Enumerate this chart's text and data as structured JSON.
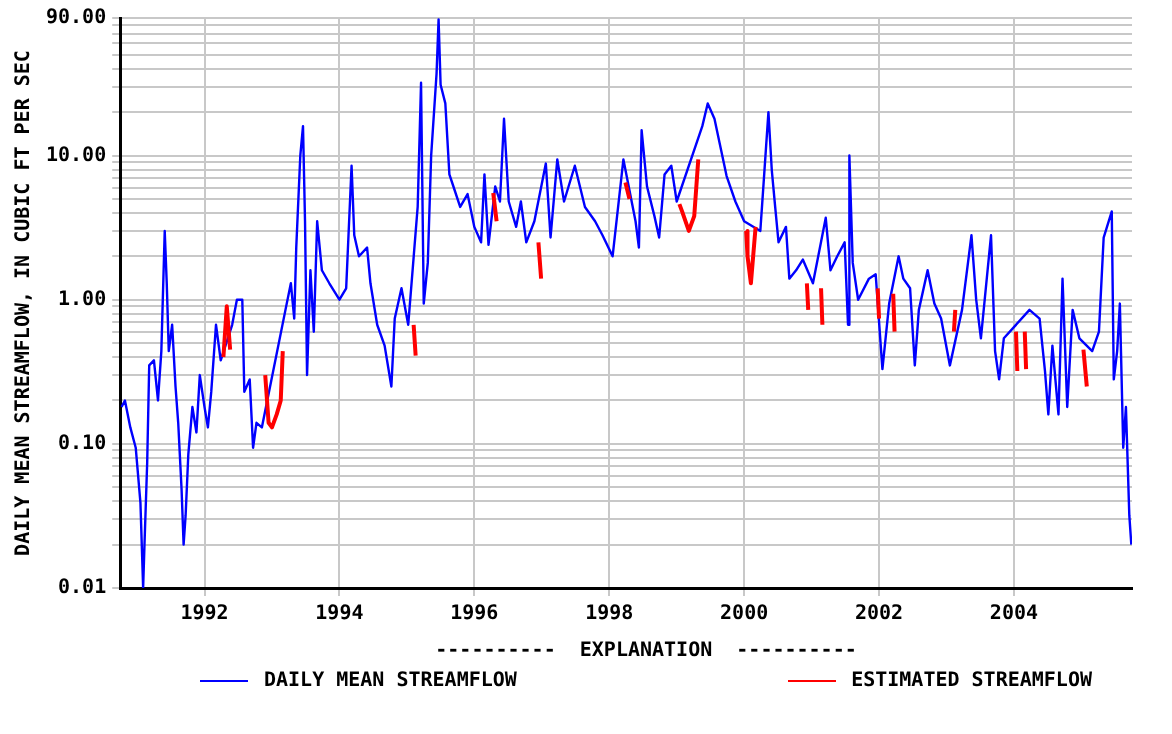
{
  "chart_data": {
    "type": "line",
    "ylabel": "DAILY MEAN STREAMFLOW, IN CUBIC FT PER SEC",
    "legend_title": "----------  EXPLANATION  ----------",
    "legend": "bottom",
    "grid": true,
    "log": "y",
    "line_style": "solid",
    "xlim": [
      1990.75,
      2005.75
    ],
    "xticks": [
      1992,
      1994,
      1996,
      1998,
      2000,
      2002,
      2004
    ],
    "ylim": [
      0.01,
      90
    ],
    "yticks": [
      {
        "value": 0.01,
        "label": "0.01"
      },
      {
        "value": 0.02,
        "label": null
      },
      {
        "value": 0.03,
        "label": null
      },
      {
        "value": 0.04,
        "label": null
      },
      {
        "value": 0.05,
        "label": null
      },
      {
        "value": 0.06,
        "label": null
      },
      {
        "value": 0.07,
        "label": null
      },
      {
        "value": 0.08,
        "label": null
      },
      {
        "value": 0.09,
        "label": null
      },
      {
        "value": 0.1,
        "label": "0.10"
      },
      {
        "value": 0.2,
        "label": null
      },
      {
        "value": 0.3,
        "label": null
      },
      {
        "value": 0.4,
        "label": null
      },
      {
        "value": 0.5,
        "label": null
      },
      {
        "value": 0.6,
        "label": null
      },
      {
        "value": 0.7,
        "label": null
      },
      {
        "value": 0.8,
        "label": null
      },
      {
        "value": 0.9,
        "label": null
      },
      {
        "value": 1,
        "label": "1.00"
      },
      {
        "value": 2,
        "label": null
      },
      {
        "value": 3,
        "label": null
      },
      {
        "value": 4,
        "label": null
      },
      {
        "value": 5,
        "label": null
      },
      {
        "value": 6,
        "label": null
      },
      {
        "value": 7,
        "label": null
      },
      {
        "value": 8,
        "label": null
      },
      {
        "value": 9,
        "label": null
      },
      {
        "value": 10,
        "label": "10.00"
      },
      {
        "value": 20,
        "label": null
      },
      {
        "value": 30,
        "label": null
      },
      {
        "value": 40,
        "label": null
      },
      {
        "value": 50,
        "label": null
      },
      {
        "value": 60,
        "label": null
      },
      {
        "value": 70,
        "label": null
      },
      {
        "value": 80,
        "label": null
      },
      {
        "value": 90,
        "label": "90.00"
      }
    ],
    "series": [
      {
        "name": "DAILY MEAN STREAMFLOW",
        "color": "#0000ff",
        "x": [
          1990.77,
          1990.82,
          1990.9,
          1990.98,
          1991.05,
          1991.09,
          1991.11,
          1991.15,
          1991.18,
          1991.25,
          1991.31,
          1991.36,
          1991.41,
          1991.44,
          1991.47,
          1991.52,
          1991.57,
          1991.61,
          1991.66,
          1991.69,
          1991.72,
          1991.76,
          1991.82,
          1991.88,
          1991.93,
          1992.0,
          1992.05,
          1992.1,
          1992.17,
          1992.24,
          1992.41,
          1992.48,
          1992.56,
          1992.59,
          1992.67,
          1992.72,
          1992.77,
          1992.85,
          1993.2,
          1993.28,
          1993.33,
          1993.36,
          1993.42,
          1993.46,
          1993.49,
          1993.52,
          1993.57,
          1993.62,
          1993.67,
          1993.74,
          1993.85,
          1994.0,
          1994.1,
          1994.18,
          1994.22,
          1994.29,
          1994.41,
          1994.46,
          1994.56,
          1994.67,
          1994.77,
          1994.82,
          1994.92,
          1995.02,
          1995.16,
          1995.21,
          1995.25,
          1995.31,
          1995.36,
          1995.44,
          1995.47,
          1995.5,
          1995.57,
          1995.63,
          1995.69,
          1995.79,
          1995.9,
          1996.0,
          1996.1,
          1996.15,
          1996.21,
          1996.31,
          1996.38,
          1996.44,
          1996.51,
          1996.62,
          1996.69,
          1996.77,
          1996.89,
          1997.06,
          1997.13,
          1997.23,
          1997.33,
          1997.49,
          1997.64,
          1997.79,
          1997.9,
          1998.05,
          1998.21,
          1998.39,
          1998.44,
          1998.48,
          1998.56,
          1998.67,
          1998.74,
          1998.82,
          1998.92,
          1999.0,
          1999.38,
          1999.46,
          1999.56,
          1999.64,
          1999.74,
          1999.87,
          2000.0,
          2000.24,
          2000.36,
          2000.41,
          2000.46,
          2000.51,
          2000.62,
          2000.67,
          2000.77,
          2000.87,
          2001.02,
          2001.21,
          2001.28,
          2001.38,
          2001.49,
          2001.54,
          2001.56,
          2001.61,
          2001.69,
          2001.85,
          2001.95,
          2002.05,
          2002.15,
          2002.29,
          2002.36,
          2002.46,
          2002.53,
          2002.59,
          2002.72,
          2002.82,
          2002.92,
          2003.05,
          2003.23,
          2003.37,
          2003.44,
          2003.51,
          2003.66,
          2003.72,
          2003.78,
          2003.85,
          2004.23,
          2004.38,
          2004.46,
          2004.51,
          2004.57,
          2004.66,
          2004.72,
          2004.79,
          2004.87,
          2004.97,
          2005.16,
          2005.26,
          2005.33,
          2005.45,
          2005.48,
          2005.53,
          2005.57,
          2005.62,
          2005.66,
          2005.71,
          2005.74
        ],
        "values": [
          0.18,
          0.2,
          0.13,
          0.094,
          0.039,
          0.01,
          0.02,
          0.074,
          0.35,
          0.38,
          0.2,
          0.44,
          3,
          1.3,
          0.44,
          0.67,
          0.25,
          0.14,
          0.048,
          0.02,
          0.032,
          0.085,
          0.18,
          0.12,
          0.3,
          0.18,
          0.13,
          0.23,
          0.67,
          0.38,
          0.67,
          1,
          1,
          0.23,
          0.28,
          0.094,
          0.14,
          0.13,
          0.85,
          1.3,
          0.74,
          2.3,
          10,
          16,
          3.5,
          0.3,
          1.6,
          0.6,
          3.5,
          1.6,
          1.3,
          1,
          1.2,
          8.5,
          2.8,
          2,
          2.3,
          1.3,
          0.67,
          0.48,
          0.25,
          0.74,
          1.2,
          0.67,
          4.4,
          32,
          0.94,
          1.8,
          10,
          37,
          88,
          31,
          23,
          7.4,
          6.1,
          4.4,
          5.4,
          3.2,
          2.5,
          7.4,
          2.4,
          6.1,
          4.8,
          18,
          4.8,
          3.2,
          4.8,
          2.5,
          3.5,
          8.8,
          2.7,
          9.4,
          4.8,
          8.5,
          4.4,
          3.5,
          2.8,
          2,
          9.4,
          3.5,
          2.3,
          15,
          6.1,
          3.8,
          2.7,
          7.4,
          8.5,
          4.8,
          16,
          23,
          18,
          12,
          7.2,
          4.8,
          3.5,
          3,
          20,
          7.9,
          4.4,
          2.5,
          3.2,
          1.4,
          1.6,
          1.9,
          1.3,
          3.7,
          1.6,
          2,
          2.5,
          0.67,
          10,
          1.8,
          1,
          1.4,
          1.5,
          0.33,
          0.94,
          2,
          1.4,
          1.2,
          0.35,
          0.85,
          1.6,
          0.94,
          0.74,
          0.35,
          0.85,
          2.8,
          1,
          0.54,
          2.8,
          0.44,
          0.28,
          0.54,
          0.85,
          0.74,
          0.32,
          0.16,
          0.48,
          0.16,
          1.4,
          0.18,
          0.85,
          0.54,
          0.44,
          0.6,
          2.7,
          4.1,
          0.28,
          0.44,
          0.94,
          0.094,
          0.18,
          0.032,
          0.02
        ]
      },
      {
        "name": "ESTIMATED STREAMFLOW",
        "color": "#ff0000",
        "x": [
          1992.28,
          1992.33,
          1992.38,
          1992.45,
          1992.9,
          1992.95,
          1993.0,
          1993.07,
          1993.13,
          1993.16,
          1993.2,
          1995.1,
          1995.13,
          1995.16,
          1996.28,
          1996.33,
          1996.36,
          1996.95,
          1996.99,
          1997.02,
          1998.24,
          1998.3,
          1998.33,
          1999.04,
          1999.08,
          1999.18,
          1999.26,
          1999.32,
          1999.35,
          2000.03,
          2000.05,
          2000.1,
          2000.17,
          2000.2,
          2000.93,
          2000.95,
          2000.98,
          2001.14,
          2001.16,
          2001.19,
          2001.98,
          2002.0,
          2002.03,
          2002.21,
          2002.23,
          2002.26,
          2003.11,
          2003.13,
          2003.16,
          2004.03,
          2004.05,
          2004.08,
          2004.16,
          2004.18,
          2004.21,
          2005.03,
          2005.08
        ],
        "values": [
          0.4,
          0.9,
          0.45,
          null,
          0.3,
          0.14,
          0.13,
          0.16,
          0.2,
          0.44,
          null,
          0.67,
          0.41,
          null,
          5.5,
          3.5,
          null,
          2.5,
          1.4,
          null,
          6.5,
          5,
          null,
          4.6,
          4.1,
          3,
          3.8,
          9.4,
          null,
          3,
          2,
          1.3,
          3.2,
          null,
          1.3,
          0.85,
          null,
          1.2,
          0.67,
          null,
          1.2,
          0.74,
          null,
          1.1,
          0.6,
          null,
          0.6,
          0.85,
          null,
          0.6,
          0.32,
          null,
          0.6,
          0.33,
          null,
          0.45,
          0.25
        ]
      }
    ]
  }
}
